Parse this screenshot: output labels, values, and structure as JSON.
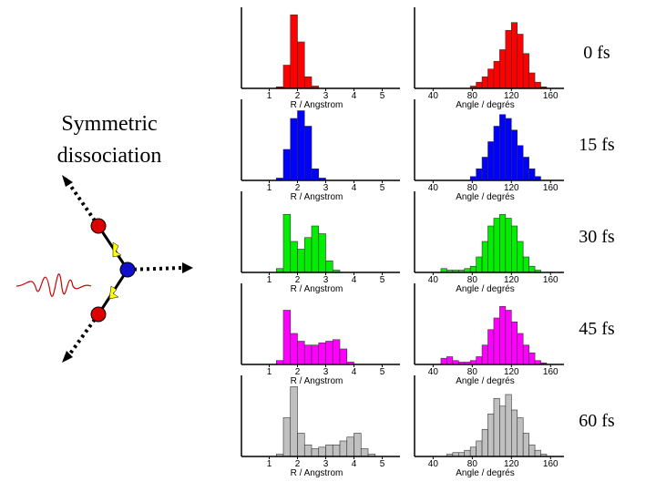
{
  "title_lines": [
    "Symmetric",
    "dissociation"
  ],
  "times": [
    "0 fs",
    "15 fs",
    "30 fs",
    "45 fs",
    "60 fs"
  ],
  "chart_data": [
    {
      "type": "histogram",
      "xlabel": "R / Angstrom",
      "color": "#ff0000",
      "xlim": [
        0.5,
        5.5
      ],
      "ylim": [
        0,
        100
      ],
      "xticks": [
        1,
        2,
        3,
        4,
        5
      ],
      "bins": [
        1.25,
        1.5,
        1.75,
        2.0,
        2.25,
        2.5,
        2.75,
        3.0,
        3.25,
        3.5,
        3.75,
        4.0,
        4.25,
        4.5,
        4.75
      ],
      "values": [
        2,
        30,
        95,
        60,
        15,
        3,
        0,
        0,
        0,
        0,
        0,
        0,
        0,
        0
      ]
    },
    {
      "type": "histogram",
      "xlabel": "Angle / degrés",
      "color": "#ff0000",
      "xlim": [
        35,
        170
      ],
      "ylim": [
        0,
        100
      ],
      "xticks": [
        40,
        80,
        120,
        160
      ],
      "bins": [
        48,
        54,
        60,
        66,
        72,
        78,
        84,
        90,
        96,
        102,
        108,
        114,
        120,
        126,
        132,
        138,
        144,
        150,
        156,
        162
      ],
      "values": [
        0,
        0,
        0,
        0,
        0,
        3,
        8,
        15,
        25,
        35,
        50,
        75,
        85,
        70,
        45,
        20,
        8,
        2,
        0
      ]
    },
    {
      "type": "histogram",
      "xlabel": "R / Angstrom",
      "color": "#0000ff",
      "xlim": [
        0.5,
        5.5
      ],
      "ylim": [
        0,
        100
      ],
      "xticks": [
        1,
        2,
        3,
        4,
        5
      ],
      "bins": [
        1.25,
        1.5,
        1.75,
        2.0,
        2.25,
        2.5,
        2.75,
        3.0,
        3.25,
        3.5,
        3.75,
        4.0,
        4.25,
        4.5,
        4.75
      ],
      "values": [
        3,
        40,
        80,
        90,
        70,
        15,
        3,
        0,
        0,
        0,
        0,
        0,
        0,
        0
      ]
    },
    {
      "type": "histogram",
      "xlabel": "Angle / degrés",
      "color": "#0000ff",
      "xlim": [
        35,
        170
      ],
      "ylim": [
        0,
        100
      ],
      "xticks": [
        40,
        80,
        120,
        160
      ],
      "bins": [
        48,
        54,
        60,
        66,
        72,
        78,
        84,
        90,
        96,
        102,
        108,
        114,
        120,
        126,
        132,
        138,
        144,
        150,
        156,
        162
      ],
      "values": [
        0,
        0,
        0,
        0,
        0,
        5,
        15,
        30,
        50,
        70,
        85,
        80,
        65,
        45,
        30,
        15,
        5,
        0,
        0
      ]
    },
    {
      "type": "histogram",
      "xlabel": "R / Angstrom",
      "color": "#00ee00",
      "xlim": [
        0.5,
        5.5
      ],
      "ylim": [
        0,
        100
      ],
      "xticks": [
        1,
        2,
        3,
        4,
        5
      ],
      "bins": [
        1.25,
        1.5,
        1.75,
        2.0,
        2.25,
        2.5,
        2.75,
        3.0,
        3.25,
        3.5,
        3.75,
        4.0,
        4.25,
        4.5,
        4.75
      ],
      "values": [
        5,
        75,
        40,
        30,
        45,
        60,
        50,
        15,
        3,
        0,
        0,
        0,
        0,
        0
      ]
    },
    {
      "type": "histogram",
      "xlabel": "Angle / degrés",
      "color": "#00ee00",
      "xlim": [
        35,
        170
      ],
      "ylim": [
        0,
        100
      ],
      "xticks": [
        40,
        80,
        120,
        160
      ],
      "bins": [
        48,
        54,
        60,
        66,
        72,
        78,
        84,
        90,
        96,
        102,
        108,
        114,
        120,
        126,
        132,
        138,
        144,
        150,
        156,
        162
      ],
      "values": [
        5,
        3,
        3,
        3,
        5,
        8,
        20,
        40,
        60,
        70,
        75,
        70,
        60,
        40,
        20,
        8,
        3,
        0,
        0
      ]
    },
    {
      "type": "histogram",
      "xlabel": "R / Angstrom",
      "color": "#ff00ff",
      "xlim": [
        0.5,
        5.5
      ],
      "ylim": [
        0,
        100
      ],
      "xticks": [
        1,
        2,
        3,
        4,
        5
      ],
      "bins": [
        1.25,
        1.5,
        1.75,
        2.0,
        2.25,
        2.5,
        2.75,
        3.0,
        3.25,
        3.5,
        3.75,
        4.0,
        4.25,
        4.5,
        4.75
      ],
      "values": [
        5,
        70,
        40,
        30,
        25,
        25,
        28,
        30,
        32,
        20,
        3,
        0,
        0,
        0
      ]
    },
    {
      "type": "histogram",
      "xlabel": "Angle / degrés",
      "color": "#ff00ff",
      "xlim": [
        35,
        170
      ],
      "ylim": [
        0,
        100
      ],
      "xticks": [
        40,
        80,
        120,
        160
      ],
      "bins": [
        48,
        54,
        60,
        66,
        72,
        78,
        84,
        90,
        96,
        102,
        108,
        114,
        120,
        126,
        132,
        138,
        144,
        150,
        156,
        162
      ],
      "values": [
        8,
        10,
        5,
        3,
        3,
        5,
        10,
        25,
        45,
        60,
        75,
        70,
        55,
        40,
        25,
        15,
        5,
        2,
        0
      ]
    },
    {
      "type": "histogram",
      "xlabel": "R / Angstrom",
      "color": "#c0c0c0",
      "xlim": [
        0.5,
        5.5
      ],
      "ylim": [
        0,
        100
      ],
      "xticks": [
        1,
        2,
        3,
        4,
        5
      ],
      "bins": [
        1.25,
        1.5,
        1.75,
        2.0,
        2.25,
        2.5,
        2.75,
        3.0,
        3.25,
        3.5,
        3.75,
        4.0,
        4.25,
        4.5,
        4.75
      ],
      "values": [
        3,
        50,
        90,
        30,
        15,
        10,
        12,
        15,
        15,
        20,
        25,
        30,
        10,
        3
      ]
    },
    {
      "type": "histogram",
      "xlabel": "Angle / degrés",
      "color": "#c0c0c0",
      "xlim": [
        35,
        170
      ],
      "ylim": [
        0,
        100
      ],
      "xticks": [
        40,
        80,
        120,
        160
      ],
      "bins": [
        48,
        54,
        60,
        66,
        72,
        78,
        84,
        90,
        96,
        102,
        108,
        114,
        120,
        126,
        132,
        138,
        144,
        150,
        156,
        162
      ],
      "values": [
        0,
        3,
        5,
        5,
        8,
        12,
        20,
        35,
        55,
        75,
        65,
        80,
        60,
        50,
        30,
        15,
        8,
        3,
        0
      ]
    }
  ]
}
